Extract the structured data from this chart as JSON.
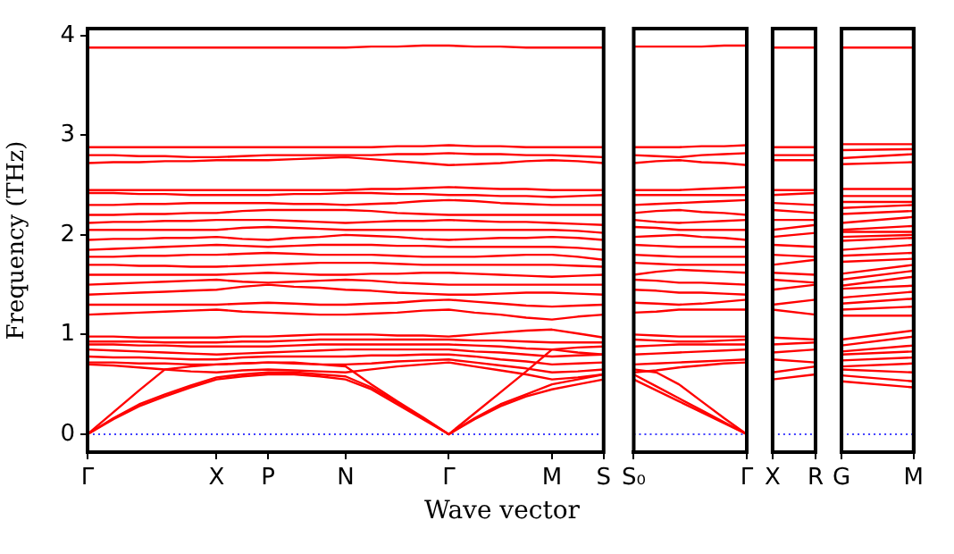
{
  "chart_data": [
    {
      "type": "line",
      "xlabel": "Wave vector",
      "ylabel": "Frequency (THz)",
      "ylim": [
        -0.18,
        4.07
      ],
      "yticks": [
        0,
        1,
        2,
        3,
        4
      ],
      "marker": "none",
      "line_style": "solid",
      "categories": [
        "Γ",
        null,
        null,
        null,
        null,
        "X",
        null,
        "P",
        null,
        null,
        "N",
        null,
        null,
        null,
        "Γ",
        null,
        null,
        null,
        "M",
        null,
        "S"
      ],
      "ref_lines": [
        {
          "axis": "y",
          "value": 0,
          "color": "#0000ff",
          "line_style": "dotted"
        }
      ],
      "series": [
        {
          "color": "#ff0000",
          "values": [
            0,
            0.15,
            0.28,
            0.38,
            0.47,
            0.55,
            0.58,
            0.6,
            0.6,
            0.58,
            0.55,
            0.45,
            0.3,
            0.15,
            0,
            0.15,
            0.28,
            0.38,
            0.45,
            0.5,
            0.55
          ]
        },
        {
          "color": "#ff0000",
          "values": [
            0,
            0.16,
            0.3,
            0.4,
            0.49,
            0.57,
            0.6,
            0.62,
            0.62,
            0.6,
            0.58,
            0.47,
            0.32,
            0.16,
            0,
            0.16,
            0.3,
            0.4,
            0.5,
            0.55,
            0.6
          ]
        },
        {
          "color": "#ff0000",
          "values": [
            0,
            0.22,
            0.44,
            0.65,
            0.68,
            0.7,
            0.71,
            0.72,
            0.72,
            0.7,
            0.68,
            0.5,
            0.33,
            0.17,
            0,
            0.21,
            0.42,
            0.63,
            0.85,
            0.82,
            0.8
          ]
        },
        {
          "color": "#ff0000",
          "values": [
            0.7,
            0.69,
            0.67,
            0.65,
            0.63,
            0.62,
            0.64,
            0.65,
            0.64,
            0.63,
            0.62,
            0.65,
            0.68,
            0.7,
            0.72,
            0.68,
            0.64,
            0.6,
            0.55,
            0.57,
            0.6
          ]
        },
        {
          "color": "#ff0000",
          "values": [
            0.72,
            0.72,
            0.71,
            0.71,
            0.7,
            0.7,
            0.71,
            0.72,
            0.71,
            0.7,
            0.7,
            0.71,
            0.73,
            0.74,
            0.75,
            0.72,
            0.69,
            0.66,
            0.62,
            0.63,
            0.65
          ]
        },
        {
          "color": "#ff0000",
          "values": [
            0.78,
            0.77,
            0.77,
            0.76,
            0.75,
            0.75,
            0.77,
            0.78,
            0.78,
            0.78,
            0.78,
            0.79,
            0.79,
            0.8,
            0.8,
            0.78,
            0.75,
            0.73,
            0.7,
            0.71,
            0.72
          ]
        },
        {
          "color": "#ff0000",
          "values": [
            0.85,
            0.84,
            0.83,
            0.82,
            0.81,
            0.8,
            0.81,
            0.82,
            0.83,
            0.84,
            0.85,
            0.85,
            0.85,
            0.85,
            0.85,
            0.83,
            0.82,
            0.8,
            0.78,
            0.79,
            0.8
          ]
        },
        {
          "color": "#ff0000",
          "values": [
            0.9,
            0.9,
            0.89,
            0.89,
            0.88,
            0.88,
            0.88,
            0.88,
            0.89,
            0.9,
            0.9,
            0.9,
            0.9,
            0.9,
            0.9,
            0.89,
            0.88,
            0.86,
            0.85,
            0.87,
            0.88
          ]
        },
        {
          "color": "#ff0000",
          "values": [
            0.93,
            0.93,
            0.93,
            0.92,
            0.92,
            0.92,
            0.93,
            0.93,
            0.94,
            0.95,
            0.95,
            0.95,
            0.95,
            0.95,
            0.95,
            0.94,
            0.94,
            0.93,
            0.92,
            0.92,
            0.92
          ]
        },
        {
          "color": "#ff0000",
          "values": [
            0.98,
            0.98,
            0.97,
            0.97,
            0.97,
            0.97,
            0.98,
            0.98,
            0.99,
            1.0,
            1.0,
            1.0,
            0.99,
            0.99,
            0.98,
            1.0,
            1.02,
            1.04,
            1.05,
            1.01,
            0.97
          ]
        },
        {
          "color": "#ff0000",
          "values": [
            1.2,
            1.21,
            1.22,
            1.23,
            1.24,
            1.25,
            1.23,
            1.22,
            1.21,
            1.2,
            1.2,
            1.21,
            1.22,
            1.24,
            1.25,
            1.22,
            1.2,
            1.17,
            1.15,
            1.18,
            1.2
          ]
        },
        {
          "color": "#ff0000",
          "values": [
            1.3,
            1.3,
            1.3,
            1.3,
            1.3,
            1.3,
            1.31,
            1.32,
            1.31,
            1.3,
            1.3,
            1.31,
            1.32,
            1.34,
            1.35,
            1.33,
            1.31,
            1.29,
            1.28,
            1.29,
            1.3
          ]
        },
        {
          "color": "#ff0000",
          "values": [
            1.4,
            1.41,
            1.42,
            1.43,
            1.44,
            1.45,
            1.48,
            1.5,
            1.48,
            1.47,
            1.45,
            1.44,
            1.42,
            1.41,
            1.4,
            1.4,
            1.41,
            1.42,
            1.42,
            1.41,
            1.4
          ]
        },
        {
          "color": "#ff0000",
          "values": [
            1.5,
            1.51,
            1.52,
            1.53,
            1.54,
            1.55,
            1.53,
            1.52,
            1.53,
            1.54,
            1.55,
            1.54,
            1.52,
            1.51,
            1.5,
            1.5,
            1.5,
            1.5,
            1.5,
            1.5,
            1.5
          ]
        },
        {
          "color": "#ff0000",
          "values": [
            1.6,
            1.6,
            1.6,
            1.6,
            1.6,
            1.6,
            1.61,
            1.62,
            1.61,
            1.6,
            1.6,
            1.61,
            1.61,
            1.62,
            1.62,
            1.61,
            1.6,
            1.59,
            1.58,
            1.59,
            1.6
          ]
        },
        {
          "color": "#ff0000",
          "values": [
            1.7,
            1.7,
            1.69,
            1.69,
            1.68,
            1.68,
            1.69,
            1.7,
            1.71,
            1.72,
            1.72,
            1.72,
            1.71,
            1.7,
            1.7,
            1.7,
            1.7,
            1.7,
            1.7,
            1.69,
            1.68
          ]
        },
        {
          "color": "#ff0000",
          "values": [
            1.78,
            1.78,
            1.79,
            1.79,
            1.8,
            1.8,
            1.81,
            1.82,
            1.81,
            1.8,
            1.8,
            1.8,
            1.79,
            1.78,
            1.78,
            1.78,
            1.79,
            1.8,
            1.8,
            1.78,
            1.75
          ]
        },
        {
          "color": "#ff0000",
          "values": [
            1.85,
            1.86,
            1.87,
            1.88,
            1.89,
            1.9,
            1.89,
            1.88,
            1.89,
            1.9,
            1.9,
            1.9,
            1.89,
            1.89,
            1.88,
            1.88,
            1.88,
            1.88,
            1.88,
            1.87,
            1.85
          ]
        },
        {
          "color": "#ff0000",
          "values": [
            1.95,
            1.96,
            1.96,
            1.97,
            1.97,
            1.98,
            1.96,
            1.95,
            1.97,
            1.98,
            2.0,
            1.99,
            1.98,
            1.96,
            1.95,
            1.96,
            1.97,
            1.97,
            1.98,
            1.97,
            1.95
          ]
        },
        {
          "color": "#ff0000",
          "values": [
            2.05,
            2.05,
            2.05,
            2.05,
            2.05,
            2.05,
            2.07,
            2.08,
            2.07,
            2.06,
            2.05,
            2.05,
            2.05,
            2.05,
            2.05,
            2.05,
            2.05,
            2.05,
            2.05,
            2.04,
            2.02
          ]
        },
        {
          "color": "#ff0000",
          "values": [
            2.12,
            2.13,
            2.13,
            2.14,
            2.14,
            2.15,
            2.15,
            2.15,
            2.14,
            2.13,
            2.12,
            2.13,
            2.14,
            2.14,
            2.15,
            2.14,
            2.13,
            2.13,
            2.12,
            2.11,
            2.1
          ]
        },
        {
          "color": "#ff0000",
          "values": [
            2.2,
            2.2,
            2.21,
            2.21,
            2.22,
            2.22,
            2.24,
            2.25,
            2.25,
            2.25,
            2.25,
            2.24,
            2.22,
            2.21,
            2.2,
            2.2,
            2.2,
            2.2,
            2.2,
            2.2,
            2.2
          ]
        },
        {
          "color": "#ff0000",
          "values": [
            2.3,
            2.3,
            2.31,
            2.31,
            2.32,
            2.32,
            2.32,
            2.32,
            2.31,
            2.31,
            2.3,
            2.31,
            2.32,
            2.34,
            2.35,
            2.34,
            2.32,
            2.31,
            2.3,
            2.3,
            2.3
          ]
        },
        {
          "color": "#ff0000",
          "values": [
            2.42,
            2.42,
            2.41,
            2.41,
            2.4,
            2.4,
            2.4,
            2.4,
            2.41,
            2.41,
            2.42,
            2.42,
            2.41,
            2.41,
            2.4,
            2.4,
            2.39,
            2.39,
            2.38,
            2.39,
            2.4
          ]
        },
        {
          "color": "#ff0000",
          "values": [
            2.45,
            2.45,
            2.45,
            2.45,
            2.45,
            2.45,
            2.45,
            2.45,
            2.45,
            2.45,
            2.45,
            2.46,
            2.46,
            2.47,
            2.48,
            2.47,
            2.46,
            2.46,
            2.45,
            2.45,
            2.45
          ]
        },
        {
          "color": "#ff0000",
          "values": [
            2.72,
            2.73,
            2.73,
            2.74,
            2.74,
            2.75,
            2.75,
            2.75,
            2.76,
            2.77,
            2.78,
            2.76,
            2.74,
            2.72,
            2.7,
            2.71,
            2.72,
            2.74,
            2.75,
            2.74,
            2.72
          ]
        },
        {
          "color": "#ff0000",
          "values": [
            2.8,
            2.8,
            2.79,
            2.79,
            2.78,
            2.78,
            2.79,
            2.8,
            2.8,
            2.8,
            2.8,
            2.8,
            2.81,
            2.81,
            2.82,
            2.81,
            2.81,
            2.8,
            2.8,
            2.79,
            2.78
          ]
        },
        {
          "color": "#ff0000",
          "values": [
            2.88,
            2.88,
            2.88,
            2.88,
            2.88,
            2.88,
            2.88,
            2.88,
            2.88,
            2.88,
            2.88,
            2.88,
            2.89,
            2.89,
            2.9,
            2.89,
            2.89,
            2.88,
            2.88,
            2.88,
            2.88
          ]
        },
        {
          "color": "#ff0000",
          "values": [
            3.88,
            3.88,
            3.88,
            3.88,
            3.88,
            3.88,
            3.88,
            3.88,
            3.88,
            3.88,
            3.88,
            3.89,
            3.89,
            3.9,
            3.9,
            3.89,
            3.89,
            3.88,
            3.88,
            3.88,
            3.88
          ]
        }
      ]
    },
    {
      "type": "line",
      "ylim": [
        -0.18,
        4.07
      ],
      "yticks": [
        0,
        1,
        2,
        3,
        4
      ],
      "tick_labels": "x",
      "marker": "none",
      "line_style": "solid",
      "categories": [
        "S₀",
        null,
        null,
        null,
        null,
        "Γ"
      ],
      "ref_lines": [
        {
          "axis": "y",
          "value": 0,
          "color": "#0000ff",
          "line_style": "dotted"
        }
      ],
      "series": [
        {
          "color": "#ff0000",
          "values": [
            0.55,
            0.44,
            0.33,
            0.22,
            0.11,
            0
          ]
        },
        {
          "color": "#ff0000",
          "values": [
            0.6,
            0.48,
            0.36,
            0.24,
            0.12,
            0
          ]
        },
        {
          "color": "#ff0000",
          "values": [
            0.65,
            0.62,
            0.5,
            0.33,
            0.16,
            0
          ]
        },
        {
          "color": "#ff0000",
          "values": [
            0.62,
            0.64,
            0.67,
            0.69,
            0.71,
            0.72
          ]
        },
        {
          "color": "#ff0000",
          "values": [
            0.7,
            0.71,
            0.72,
            0.73,
            0.74,
            0.75
          ]
        },
        {
          "color": "#ff0000",
          "values": [
            0.8,
            0.81,
            0.82,
            0.83,
            0.84,
            0.85
          ]
        },
        {
          "color": "#ff0000",
          "values": [
            0.88,
            0.89,
            0.9,
            0.9,
            0.9,
            0.9
          ]
        },
        {
          "color": "#ff0000",
          "values": [
            0.95,
            0.94,
            0.93,
            0.93,
            0.94,
            0.95
          ]
        },
        {
          "color": "#ff0000",
          "values": [
            1.0,
            0.99,
            0.98,
            0.98,
            0.98,
            0.98
          ]
        },
        {
          "color": "#ff0000",
          "values": [
            1.22,
            1.23,
            1.25,
            1.25,
            1.25,
            1.25
          ]
        },
        {
          "color": "#ff0000",
          "values": [
            1.32,
            1.31,
            1.3,
            1.31,
            1.33,
            1.35
          ]
        },
        {
          "color": "#ff0000",
          "values": [
            1.45,
            1.44,
            1.42,
            1.42,
            1.41,
            1.4
          ]
        },
        {
          "color": "#ff0000",
          "values": [
            1.55,
            1.54,
            1.52,
            1.52,
            1.51,
            1.5
          ]
        },
        {
          "color": "#ff0000",
          "values": [
            1.6,
            1.63,
            1.65,
            1.64,
            1.63,
            1.62
          ]
        },
        {
          "color": "#ff0000",
          "values": [
            1.72,
            1.71,
            1.7,
            1.7,
            1.7,
            1.7
          ]
        },
        {
          "color": "#ff0000",
          "values": [
            1.8,
            1.79,
            1.78,
            1.78,
            1.78,
            1.78
          ]
        },
        {
          "color": "#ff0000",
          "values": [
            1.9,
            1.89,
            1.88,
            1.88,
            1.88,
            1.88
          ]
        },
        {
          "color": "#ff0000",
          "values": [
            1.98,
            1.99,
            2.0,
            1.98,
            1.97,
            1.95
          ]
        },
        {
          "color": "#ff0000",
          "values": [
            2.08,
            2.07,
            2.05,
            2.05,
            2.05,
            2.05
          ]
        },
        {
          "color": "#ff0000",
          "values": [
            2.15,
            2.13,
            2.12,
            2.13,
            2.14,
            2.15
          ]
        },
        {
          "color": "#ff0000",
          "values": [
            2.22,
            2.24,
            2.25,
            2.23,
            2.22,
            2.2
          ]
        },
        {
          "color": "#ff0000",
          "values": [
            2.3,
            2.31,
            2.32,
            2.33,
            2.34,
            2.35
          ]
        },
        {
          "color": "#ff0000",
          "values": [
            2.4,
            2.4,
            2.4,
            2.4,
            2.4,
            2.4
          ]
        },
        {
          "color": "#ff0000",
          "values": [
            2.45,
            2.45,
            2.45,
            2.46,
            2.47,
            2.48
          ]
        },
        {
          "color": "#ff0000",
          "values": [
            2.72,
            2.74,
            2.75,
            2.73,
            2.72,
            2.7
          ]
        },
        {
          "color": "#ff0000",
          "values": [
            2.8,
            2.79,
            2.78,
            2.8,
            2.81,
            2.82
          ]
        },
        {
          "color": "#ff0000",
          "values": [
            2.88,
            2.88,
            2.88,
            2.89,
            2.89,
            2.9
          ]
        },
        {
          "color": "#ff0000",
          "values": [
            3.89,
            3.89,
            3.89,
            3.89,
            3.9,
            3.9
          ]
        }
      ]
    },
    {
      "type": "line",
      "ylim": [
        -0.18,
        4.07
      ],
      "yticks": [
        0,
        1,
        2,
        3,
        4
      ],
      "tick_labels": "x",
      "marker": "none",
      "line_style": "solid",
      "categories": [
        "X",
        "R"
      ],
      "ref_lines": [
        {
          "axis": "y",
          "value": 0,
          "color": "#0000ff",
          "line_style": "dotted"
        }
      ],
      "series": [
        {
          "color": "#ff0000",
          "values": [
            0.55,
            0.6
          ]
        },
        {
          "color": "#ff0000",
          "values": [
            0.62,
            0.68
          ]
        },
        {
          "color": "#ff0000",
          "values": [
            0.75,
            0.72
          ]
        },
        {
          "color": "#ff0000",
          "values": [
            0.82,
            0.85
          ]
        },
        {
          "color": "#ff0000",
          "values": [
            0.9,
            0.92
          ]
        },
        {
          "color": "#ff0000",
          "values": [
            0.97,
            0.95
          ]
        },
        {
          "color": "#ff0000",
          "values": [
            1.25,
            1.2
          ]
        },
        {
          "color": "#ff0000",
          "values": [
            1.3,
            1.35
          ]
        },
        {
          "color": "#ff0000",
          "values": [
            1.45,
            1.5
          ]
        },
        {
          "color": "#ff0000",
          "values": [
            1.55,
            1.52
          ]
        },
        {
          "color": "#ff0000",
          "values": [
            1.62,
            1.6
          ]
        },
        {
          "color": "#ff0000",
          "values": [
            1.7,
            1.75
          ]
        },
        {
          "color": "#ff0000",
          "values": [
            1.8,
            1.78
          ]
        },
        {
          "color": "#ff0000",
          "values": [
            1.9,
            1.88
          ]
        },
        {
          "color": "#ff0000",
          "values": [
            1.98,
            2.02
          ]
        },
        {
          "color": "#ff0000",
          "values": [
            2.05,
            2.1
          ]
        },
        {
          "color": "#ff0000",
          "values": [
            2.15,
            2.15
          ]
        },
        {
          "color": "#ff0000",
          "values": [
            2.25,
            2.22
          ]
        },
        {
          "color": "#ff0000",
          "values": [
            2.32,
            2.3
          ]
        },
        {
          "color": "#ff0000",
          "values": [
            2.4,
            2.42
          ]
        },
        {
          "color": "#ff0000",
          "values": [
            2.45,
            2.45
          ]
        },
        {
          "color": "#ff0000",
          "values": [
            2.75,
            2.75
          ]
        },
        {
          "color": "#ff0000",
          "values": [
            2.8,
            2.8
          ]
        },
        {
          "color": "#ff0000",
          "values": [
            2.88,
            2.88
          ]
        },
        {
          "color": "#ff0000",
          "values": [
            3.88,
            3.88
          ]
        }
      ]
    },
    {
      "type": "line",
      "ylim": [
        -0.18,
        4.07
      ],
      "yticks": [
        0,
        1,
        2,
        3,
        4
      ],
      "tick_labels": "x",
      "marker": "none",
      "line_style": "solid",
      "categories": [
        "G",
        "M"
      ],
      "ref_lines": [
        {
          "axis": "y",
          "value": 0,
          "color": "#0000ff",
          "line_style": "dotted"
        }
      ],
      "series": [
        {
          "color": "#ff0000",
          "values": [
            0.53,
            0.47
          ]
        },
        {
          "color": "#ff0000",
          "values": [
            0.59,
            0.53
          ]
        },
        {
          "color": "#ff0000",
          "values": [
            0.65,
            0.62
          ]
        },
        {
          "color": "#ff0000",
          "values": [
            0.68,
            0.71
          ]
        },
        {
          "color": "#ff0000",
          "values": [
            0.74,
            0.77
          ]
        },
        {
          "color": "#ff0000",
          "values": [
            0.8,
            0.83
          ]
        },
        {
          "color": "#ff0000",
          "values": [
            0.83,
            0.89
          ]
        },
        {
          "color": "#ff0000",
          "values": [
            0.89,
            0.98
          ]
        },
        {
          "color": "#ff0000",
          "values": [
            0.95,
            1.04
          ]
        },
        {
          "color": "#ff0000",
          "values": [
            1.19,
            1.19
          ]
        },
        {
          "color": "#ff0000",
          "values": [
            1.25,
            1.28
          ]
        },
        {
          "color": "#ff0000",
          "values": [
            1.31,
            1.36
          ]
        },
        {
          "color": "#ff0000",
          "values": [
            1.37,
            1.43
          ]
        },
        {
          "color": "#ff0000",
          "values": [
            1.46,
            1.49
          ]
        },
        {
          "color": "#ff0000",
          "values": [
            1.49,
            1.58
          ]
        },
        {
          "color": "#ff0000",
          "values": [
            1.55,
            1.64
          ]
        },
        {
          "color": "#ff0000",
          "values": [
            1.61,
            1.7
          ]
        },
        {
          "color": "#ff0000",
          "values": [
            1.73,
            1.76
          ]
        },
        {
          "color": "#ff0000",
          "values": [
            1.79,
            1.82
          ]
        },
        {
          "color": "#ff0000",
          "values": [
            1.85,
            1.9
          ]
        },
        {
          "color": "#ff0000",
          "values": [
            1.94,
            1.97
          ]
        },
        {
          "color": "#ff0000",
          "values": [
            1.98,
            2.0
          ]
        },
        {
          "color": "#ff0000",
          "values": [
            2.03,
            2.03
          ]
        },
        {
          "color": "#ff0000",
          "values": [
            2.05,
            2.09
          ]
        },
        {
          "color": "#ff0000",
          "values": [
            2.12,
            2.18
          ]
        },
        {
          "color": "#ff0000",
          "values": [
            2.21,
            2.24
          ]
        },
        {
          "color": "#ff0000",
          "values": [
            2.27,
            2.3
          ]
        },
        {
          "color": "#ff0000",
          "values": [
            2.33,
            2.33
          ]
        },
        {
          "color": "#ff0000",
          "values": [
            2.39,
            2.39
          ]
        },
        {
          "color": "#ff0000",
          "values": [
            2.46,
            2.46
          ]
        },
        {
          "color": "#ff0000",
          "values": [
            2.71,
            2.73
          ]
        },
        {
          "color": "#ff0000",
          "values": [
            2.77,
            2.81
          ]
        },
        {
          "color": "#ff0000",
          "values": [
            2.85,
            2.86
          ]
        },
        {
          "color": "#ff0000",
          "values": [
            2.91,
            2.91
          ]
        },
        {
          "color": "#ff0000",
          "values": [
            3.88,
            3.88
          ]
        }
      ]
    }
  ]
}
